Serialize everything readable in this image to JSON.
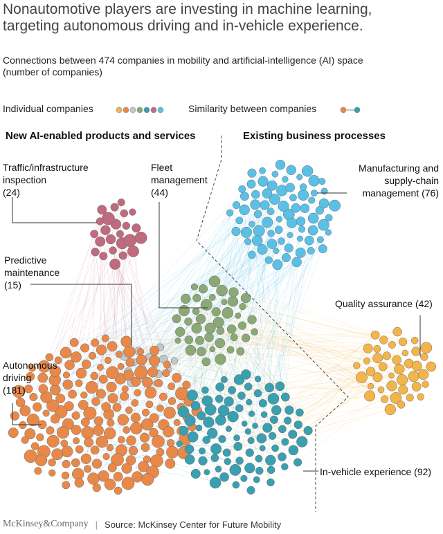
{
  "title": "Nonautomotive players are investing in machine learning, targeting autonomous driving and in-vehicle experience.",
  "subtitle": "Connections between 474 companies in mobility and artificial-intelligence (AI) space",
  "subtitle_note": "(number of companies)",
  "legend": {
    "individual_label": "Individual companies",
    "similarity_label": "Similarity between companies"
  },
  "sections": {
    "left": "New AI-enabled products and services",
    "right": "Existing business processes"
  },
  "colors": {
    "autonomous": "#e8894a",
    "traffic": "#c06a7e",
    "predictive": "#c2c7cb",
    "fleet": "#8aa976",
    "invehicle": "#3a9fb0",
    "manufacturing": "#5bc0e6",
    "quality": "#f3b44a"
  },
  "chart_data": {
    "type": "network",
    "total_companies": 474,
    "clusters": [
      {
        "key": "traffic",
        "name": "Traffic/infrastructure inspection",
        "count": 24
      },
      {
        "key": "fleet",
        "name": "Fleet management",
        "count": 44
      },
      {
        "key": "predictive",
        "name": "Predictive maintenance",
        "count": 15
      },
      {
        "key": "autonomous",
        "name": "Autonomous driving",
        "count": 181
      },
      {
        "key": "manufacturing",
        "name": "Manufacturing and supply-chain management",
        "count": 76
      },
      {
        "key": "quality",
        "name": "Quality assurance",
        "count": 42
      },
      {
        "key": "invehicle",
        "name": "In-vehicle experience",
        "count": 92
      }
    ]
  },
  "labels": {
    "traffic": {
      "l1": "Traffic/infrastructure",
      "l2": "inspection",
      "count": "(24)"
    },
    "fleet": {
      "l1": "Fleet",
      "l2": "management",
      "count": "(44)"
    },
    "predictive": {
      "l1": "Predictive",
      "l2": "maintenance",
      "count": "(15)"
    },
    "autonomous": {
      "l1": "Autonomous",
      "l2": "driving",
      "count": "(181)"
    },
    "manufacturing": {
      "l1": "Manufacturing and",
      "l2": "supply-chain",
      "l3": "management (76)"
    },
    "quality": {
      "text": "Quality assurance (42)"
    },
    "invehicle": {
      "text": "In-vehicle experience (92)"
    }
  },
  "footer": {
    "brand": "McKinsey&Company",
    "source": "Source: McKinsey Center for Future Mobility"
  }
}
